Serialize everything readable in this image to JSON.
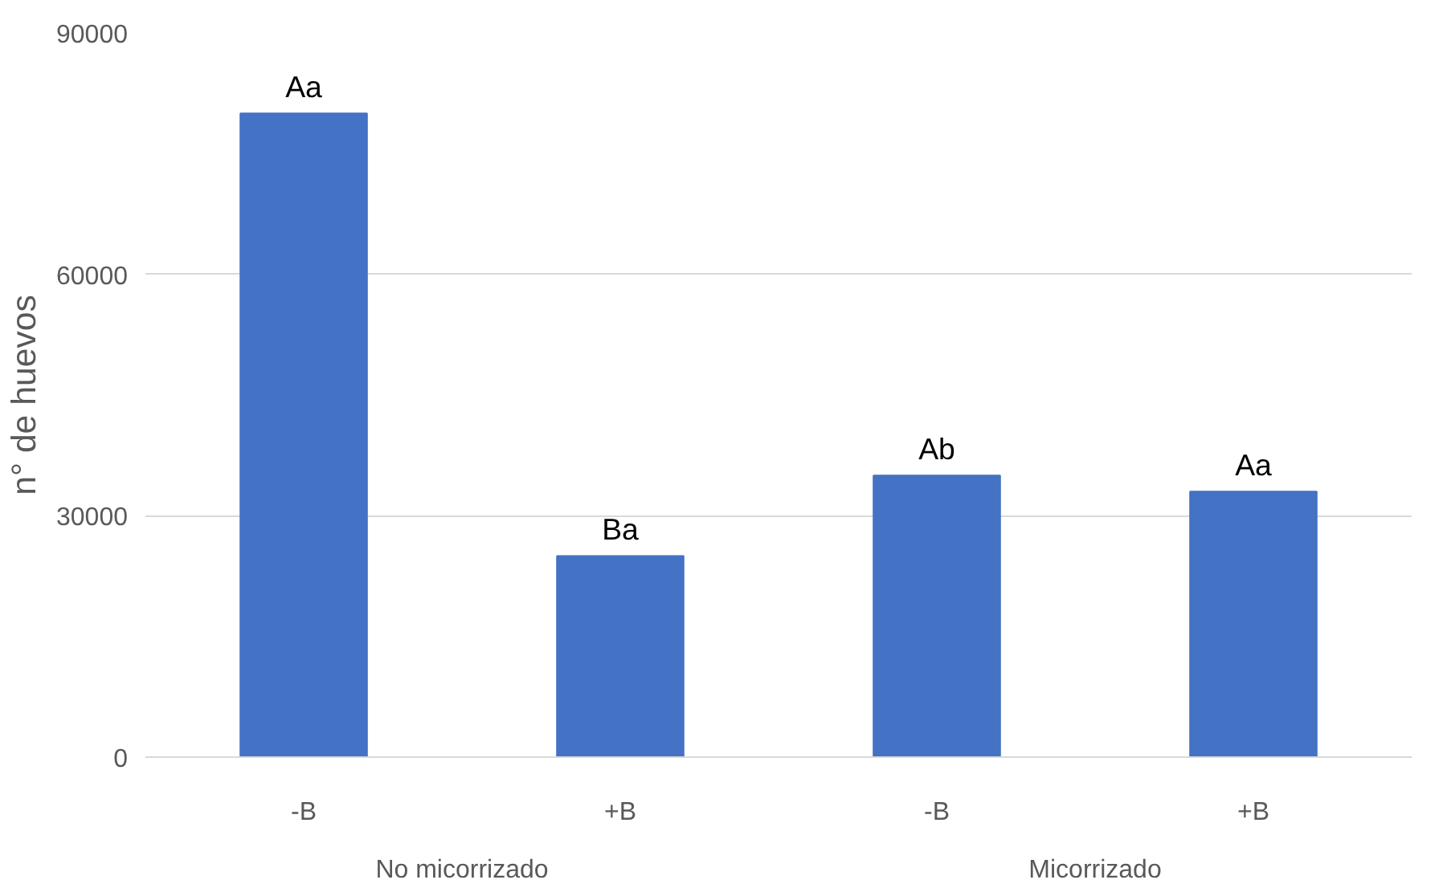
{
  "chart_data": {
    "type": "bar",
    "ylabel": "n° de huevos",
    "categories": [
      "-B",
      "+B",
      "-B",
      "+B"
    ],
    "values": [
      80000,
      25000,
      35000,
      33000
    ],
    "color": "#4472c4",
    "value_labels": [
      "Aa",
      "Ba",
      "Ab",
      "Aa"
    ],
    "annotations": [
      "No micorrizado",
      "Micorrizado"
    ],
    "ylim": [
      0,
      90000
    ],
    "yticks": [
      0,
      30000,
      60000,
      90000
    ],
    "grid": "y"
  }
}
